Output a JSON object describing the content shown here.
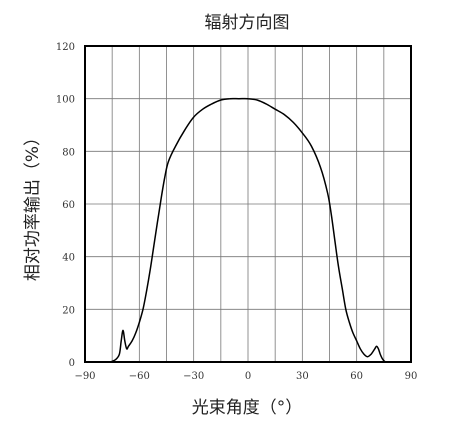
{
  "chart_data": {
    "type": "line",
    "title": "辐射方向图",
    "xlabel": "光束角度（°）",
    "ylabel": "相对功率输出（%）",
    "xlim": [
      -90,
      90
    ],
    "ylim": [
      0,
      120
    ],
    "xticks": [
      -90,
      -60,
      -30,
      0,
      30,
      60,
      90
    ],
    "yticks": [
      0,
      20,
      40,
      60,
      80,
      100,
      120
    ],
    "xtick_labels": [
      "−90",
      "−60",
      "−30",
      "0",
      "30",
      "60",
      "90"
    ],
    "ytick_labels": [
      "0",
      "20",
      "40",
      "60",
      "80",
      "100",
      "120"
    ],
    "grid": true,
    "grid_x_step": 15,
    "grid_y_step": 20,
    "line_color": "#000000",
    "series": [
      {
        "x": [
          -76,
          -73,
          -71,
          -70,
          -69,
          -68,
          -67,
          -66,
          -64,
          -62,
          -60,
          -58,
          -56,
          -54,
          -52,
          -50,
          -48,
          -46,
          -44,
          -40,
          -35,
          -30,
          -25,
          -20,
          -15,
          -10,
          -5,
          0,
          5,
          10,
          15,
          20,
          25,
          30,
          35,
          40,
          44,
          46,
          48,
          50,
          52,
          54,
          56,
          58,
          60,
          62,
          64,
          66,
          68,
          70,
          71,
          72,
          73,
          74,
          75,
          76
        ],
        "y": [
          0,
          1,
          3,
          8,
          12,
          8,
          5,
          6,
          8,
          11,
          15,
          20,
          27,
          35,
          44,
          53,
          62,
          70,
          76,
          82,
          88,
          93,
          96,
          98,
          99.5,
          100,
          100,
          100,
          99.5,
          98,
          96,
          94,
          91,
          87,
          82,
          74,
          64,
          56,
          46,
          36,
          28,
          20,
          15,
          11,
          8,
          5,
          3,
          2,
          3,
          5,
          6,
          5,
          3,
          1.5,
          0.5,
          0
        ]
      }
    ]
  }
}
